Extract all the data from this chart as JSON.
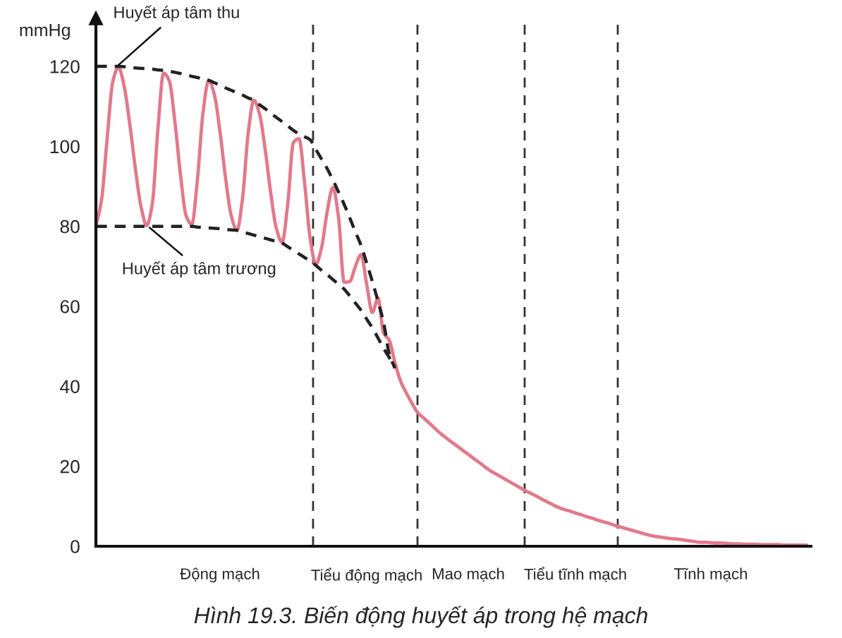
{
  "chart_data": {
    "type": "line",
    "title": "Hình 19.3. Biến động huyết áp trong hệ mạch",
    "ylabel": "mmHg",
    "ylim": [
      0,
      132
    ],
    "yticks": [
      0,
      20,
      40,
      60,
      80,
      100,
      120
    ],
    "categories": [
      null,
      null,
      null,
      null,
      null,
      null,
      null,
      null,
      null,
      null,
      null,
      null,
      null,
      null,
      null,
      null,
      null,
      null,
      null,
      null,
      null,
      null,
      "Động mạch",
      null,
      null,
      null,
      null,
      null,
      null,
      null,
      null,
      null,
      null,
      null,
      null,
      null,
      null,
      null,
      null,
      null,
      null,
      null,
      null,
      null,
      null,
      null,
      null,
      null,
      "Tiểu động mạch",
      null,
      null,
      null,
      null,
      null,
      null,
      null,
      null,
      null,
      null,
      null,
      null,
      null,
      null,
      null,
      null,
      null,
      "Mao mạch",
      null,
      null,
      null,
      null,
      null,
      null,
      null,
      null,
      null,
      null,
      null,
      null,
      null,
      null,
      null,
      null,
      null,
      null,
      "Tiểu tĩnh mạch",
      null,
      null,
      null,
      null,
      null,
      null,
      null,
      null,
      null,
      null,
      null,
      null,
      null,
      null,
      null,
      null,
      null,
      null,
      null,
      null,
      null,
      null,
      null,
      "Tĩnh mạch",
      null,
      null,
      null,
      null,
      null,
      null,
      null,
      null,
      null,
      null,
      null,
      null,
      null,
      null,
      null,
      null,
      null
    ],
    "series": [
      {
        "color": "#e2798b",
        "line_style": "solid",
        "values": [
          80,
          86.6,
          102.1,
          116.2,
          119.8,
          115.1,
          105.6,
          94.4,
          84.9,
          80.2,
          85.7,
          104.5,
          118.3,
          116.4,
          106.2,
          92.8,
          82.6,
          80.5,
          91.8,
          108.6,
          116.5,
          112.9,
          103.6,
          91.9,
          82.6,
          79,
          87.1,
          103.4,
          111.5,
          108.1,
          99.3,
          88.2,
          79.4,
          76,
          85.5,
          100.9,
          101.9,
          90.7,
          76.7,
          70.5,
          74.7,
          83.7,
          89.7,
          82.3,
          66,
          66.2,
          70,
          72.9,
          65.5,
          58.5,
          62,
          53.3,
          51.5,
          46,
          41.3,
          38.4,
          35.8,
          33.5,
          32.2,
          30.9,
          29.6,
          28.3,
          27.2,
          26.1,
          25.1,
          24,
          23,
          21.9,
          20.9,
          19.8,
          18.8,
          18,
          17.2,
          16.4,
          15.6,
          14.8,
          14,
          13.3,
          12.6,
          11.8,
          11.1,
          10.4,
          9.7,
          9.2,
          8.8,
          8.3,
          7.9,
          7.4,
          7,
          6.5,
          6.1,
          5.7,
          5.2,
          4.8,
          4.4,
          4,
          3.6,
          3.2,
          2.8,
          2.5,
          2.3,
          2.1,
          1.9,
          1.8,
          1.6,
          1.4,
          1.2,
          1,
          1,
          0.9,
          0.8,
          0.8,
          0.7,
          0.6,
          0.6,
          0.5,
          0.5,
          0.5,
          0.4,
          0.4,
          0.4,
          0.4,
          0.3,
          0.3,
          0.3,
          0.3,
          0.3
        ]
      },
      {
        "color": "#222222",
        "line_style": "dashed",
        "values": [
          120,
          120,
          120,
          120,
          120,
          119.9,
          119.7,
          119.6,
          119.5,
          119.4,
          119.3,
          119.1,
          119,
          118.8,
          118.5,
          118.2,
          117.9,
          117.5,
          117.2,
          116.8,
          116.5,
          115.9,
          115.3,
          114.6,
          114,
          113.4,
          112.8,
          112.1,
          111.5,
          110.4,
          109.4,
          108.3,
          107.2,
          106.2,
          105.1,
          104,
          103.1,
          102.4,
          101.6,
          99.2,
          96.8,
          94.4,
          91.6,
          88.6,
          85.5,
          82.1,
          78.6,
          75.2,
          70.8,
          66.2,
          61.3,
          55.9,
          48.1,
          44.5,
          null,
          null,
          null,
          null,
          null,
          null,
          null,
          null,
          null,
          null,
          null,
          null,
          null,
          null,
          null,
          null,
          null,
          null,
          null,
          null,
          null,
          null,
          null,
          null,
          null,
          null,
          null,
          null,
          null,
          null,
          null,
          null,
          null,
          null,
          null,
          null,
          null,
          null,
          null,
          null,
          null,
          null,
          null,
          null,
          null,
          null,
          null,
          null,
          null,
          null,
          null,
          null,
          null,
          null,
          null,
          null,
          null,
          null,
          null,
          null,
          null,
          null,
          null,
          null,
          null,
          null,
          null,
          null,
          null,
          null,
          null,
          null,
          null
        ]
      },
      {
        "color": "#222222",
        "line_style": "dashed",
        "values": [
          80,
          80,
          80,
          80,
          80,
          80,
          80,
          80,
          80,
          80,
          80,
          80,
          80,
          80,
          80,
          80,
          80,
          80,
          79.8,
          79.7,
          79.6,
          79.5,
          79.4,
          79.2,
          79.1,
          79,
          78.6,
          78.2,
          77.8,
          77.4,
          77,
          76.6,
          76.2,
          75.8,
          74.9,
          74,
          73.1,
          72.2,
          71.3,
          70.2,
          69,
          67.9,
          66.7,
          65.5,
          64.3,
          62.6,
          60.8,
          59,
          56.8,
          54.6,
          52.1,
          49.5,
          47.2,
          45,
          null,
          null,
          null,
          null,
          null,
          null,
          null,
          null,
          null,
          null,
          null,
          null,
          null,
          null,
          null,
          null,
          null,
          null,
          null,
          null,
          null,
          null,
          null,
          null,
          null,
          null,
          null,
          null,
          null,
          null,
          null,
          null,
          null,
          null,
          null,
          null,
          null,
          null,
          null,
          null,
          null,
          null,
          null,
          null,
          null,
          null,
          null,
          null,
          null,
          null,
          null,
          null,
          null,
          null,
          null,
          null,
          null,
          null,
          null,
          null,
          null,
          null,
          null,
          null,
          null,
          null,
          null,
          null,
          null,
          null,
          null,
          null,
          null
        ]
      }
    ],
    "annotations": [
      {
        "text": "Huyết áp tâm thu",
        "y": 120
      },
      {
        "text": "Huyết áp tâm trương",
        "y": 80
      }
    ]
  }
}
